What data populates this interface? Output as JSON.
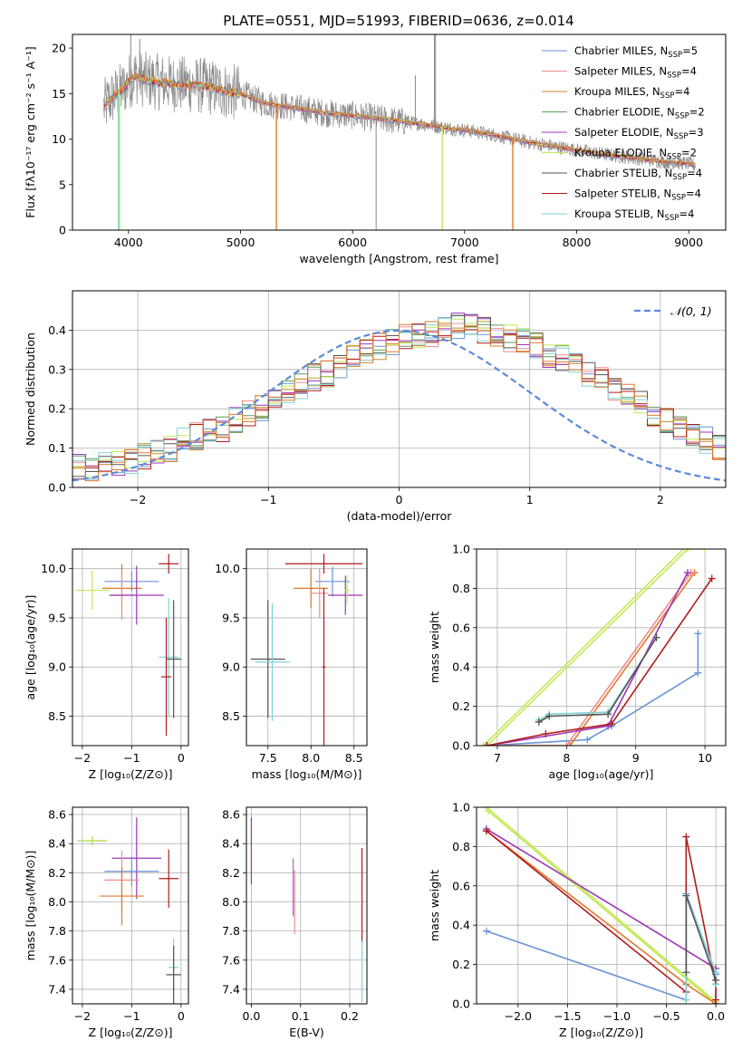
{
  "title": "PLATE=0551, MJD=51993, FIBERID=0636, z=0.014",
  "colors": {
    "chabrier_miles": "#6b93d6",
    "salpeter_miles": "#f08c8c",
    "kroupa_miles": "#c88a28",
    "chabrier_elodie": "#5e9e5e",
    "salpeter_elodie": "#9e34b8",
    "kroupa_elodie": "#c4e85a",
    "chabrier_stelib": "#555555",
    "salpeter_stelib": "#b01c1c",
    "kroupa_stelib": "#7fd3d6",
    "orange_model": "#e0792a",
    "data_gray": "#888888",
    "gaussian": "#5b8bd9",
    "grid": "#b0b0b0"
  },
  "legend_entries": [
    {
      "pre": "Chabrier MILES, N",
      "sub": "SSP",
      "post": "=5",
      "color": "#6b93d6"
    },
    {
      "pre": "Salpeter MILES, N",
      "sub": "SSP",
      "post": "=4",
      "color": "#f08c8c"
    },
    {
      "pre": "Kroupa MILES, N",
      "sub": "SSP",
      "post": "=4",
      "color": "#c88a28"
    },
    {
      "pre": "Chabrier ELODIE, N",
      "sub": "SSP",
      "post": "=2",
      "color": "#5e9e5e"
    },
    {
      "pre": "Salpeter ELODIE, N",
      "sub": "SSP",
      "post": "=3",
      "color": "#9e34b8"
    },
    {
      "pre": "Kroupa ELODIE, N",
      "sub": "SSP",
      "post": "=2",
      "color": "#c4e85a"
    },
    {
      "pre": "Chabrier STELIB, N",
      "sub": "SSP",
      "post": "=4",
      "color": "#555555"
    },
    {
      "pre": "Salpeter STELIB, N",
      "sub": "SSP",
      "post": "=4",
      "color": "#b01c1c"
    },
    {
      "pre": "Kroupa STELIB, N",
      "sub": "SSP",
      "post": "=4",
      "color": "#7fd3d6"
    }
  ],
  "chart_data": [
    {
      "id": "spectrum",
      "type": "line",
      "xlabel": "wavelength [Angstrom, rest frame]",
      "ylabel": "Flux [fλ10⁻¹⁷ erg cm⁻² s⁻¹ A⁻¹]",
      "xlim": [
        3500,
        9330
      ],
      "ylim": [
        0,
        21.5
      ],
      "xticks": [
        "4000",
        "5000",
        "6000",
        "7000",
        "8000",
        "9000"
      ],
      "xtick_values": [
        4000,
        5000,
        6000,
        7000,
        8000,
        9000
      ],
      "yticks": [
        "0",
        "5",
        "10",
        "15",
        "20"
      ],
      "ytick_values": [
        0,
        5,
        10,
        15,
        20
      ],
      "continuum": {
        "x": [
          3780,
          3850,
          3950,
          4050,
          4150,
          4300,
          4500,
          4700,
          4900,
          5000,
          5200,
          5400,
          5600,
          5800,
          6000,
          6200,
          6400,
          6600,
          6800,
          7000,
          7200,
          7400,
          7600,
          7800,
          8000,
          8200,
          8400,
          8600,
          8800,
          9000,
          9060
        ],
        "y": [
          13.5,
          14.5,
          15.5,
          17.0,
          16.5,
          16.2,
          16.0,
          15.8,
          15.2,
          15.0,
          14.0,
          13.6,
          13.2,
          12.8,
          12.6,
          12.3,
          12.0,
          11.7,
          11.3,
          11.0,
          10.6,
          10.1,
          9.6,
          9.2,
          8.8,
          8.4,
          8.1,
          7.8,
          7.5,
          7.3,
          7.1
        ]
      },
      "dropouts": [
        {
          "x": 3920,
          "y": 0.0,
          "color": "#c4e85a"
        },
        {
          "x": 3910,
          "y": 0.0,
          "color": "#7fd3d6"
        },
        {
          "x": 5320,
          "y": 0.0,
          "color": "#e0792a"
        },
        {
          "x": 6800,
          "y": 0.0,
          "color": "#c4e85a"
        },
        {
          "x": 7430,
          "y": 0.0,
          "color": "#e0792a"
        }
      ],
      "spikes": [
        {
          "x": 4020,
          "y": 21.5,
          "color": "#888888"
        },
        {
          "x": 4100,
          "y": 21.0,
          "color": "#888888"
        },
        {
          "x": 6210,
          "y": 0.0,
          "color": "#888888"
        },
        {
          "x": 6560,
          "y": 17.0,
          "color": "#888888"
        },
        {
          "x": 6730,
          "y": 21.5,
          "color": "#888888"
        },
        {
          "x": 6740,
          "y": 21.5,
          "color": "#888888"
        }
      ]
    },
    {
      "id": "residual-histogram",
      "type": "histogram",
      "xlabel": "(data-model)/error",
      "ylabel": "Normed distribution",
      "xlim": [
        -2.5,
        2.5
      ],
      "ylim": [
        0,
        0.5
      ],
      "xticks": [
        "−2",
        "−1",
        "0",
        "1",
        "2"
      ],
      "xtick_values": [
        -2,
        -1,
        0,
        1,
        2
      ],
      "yticks": [
        "0.0",
        "0.1",
        "0.2",
        "0.3",
        "0.4"
      ],
      "ytick_values": [
        0,
        0.1,
        0.2,
        0.3,
        0.4
      ],
      "gaussian_label": "𝒩(0, 1)",
      "bin_edges_start": -2.5,
      "bin_width": 0.1,
      "reference_heights": [
        0.05,
        0.05,
        0.06,
        0.06,
        0.07,
        0.08,
        0.09,
        0.1,
        0.12,
        0.13,
        0.14,
        0.15,
        0.17,
        0.19,
        0.2,
        0.22,
        0.24,
        0.26,
        0.28,
        0.29,
        0.31,
        0.33,
        0.35,
        0.36,
        0.37,
        0.38,
        0.39,
        0.39,
        0.4,
        0.41,
        0.42,
        0.4,
        0.39,
        0.38,
        0.37,
        0.36,
        0.34,
        0.33,
        0.31,
        0.29,
        0.27,
        0.25,
        0.23,
        0.21,
        0.19,
        0.17,
        0.15,
        0.13,
        0.12,
        0.1
      ],
      "series_order": [
        "chabrier_miles",
        "salpeter_miles",
        "kroupa_miles",
        "chabrier_elodie",
        "salpeter_elodie",
        "kroupa_elodie",
        "chabrier_stelib",
        "salpeter_stelib",
        "kroupa_stelib",
        "orange_model"
      ]
    },
    {
      "id": "age-vs-Z",
      "type": "errorbar",
      "xlabel": "Z [log₁₀(Z/Z⊙)]",
      "ylabel": "age  [log₁₀(age/yr)]",
      "xlim": [
        -2.2,
        0.15
      ],
      "ylim": [
        8.2,
        10.2
      ],
      "xticks": [
        "−2",
        "−1",
        "0"
      ],
      "xtick_values": [
        -2,
        -1,
        0
      ],
      "yticks": [
        "8.5",
        "9.0",
        "9.5",
        "10.0"
      ],
      "ytick_values": [
        8.5,
        9.0,
        9.5,
        10.0
      ],
      "points": [
        {
          "x": -1.0,
          "y": 9.87,
          "xerr": 0.55,
          "yerr": 0.1,
          "color": "#6b93d6"
        },
        {
          "x": -1.2,
          "y": 9.8,
          "xerr": 0.4,
          "yerr": 0.25,
          "color": "#e0792a"
        },
        {
          "x": -1.2,
          "y": 9.73,
          "xerr": 0.25,
          "yerr": 0.25,
          "color": "#f08c8c"
        },
        {
          "x": -0.9,
          "y": 9.73,
          "xerr": 0.55,
          "yerr": 0.3,
          "color": "#9e34b8"
        },
        {
          "x": -1.8,
          "y": 9.78,
          "xerr": 0.35,
          "yerr": 0.2,
          "color": "#c4e85a"
        },
        {
          "x": -0.25,
          "y": 10.05,
          "xerr": 0.2,
          "yerr": 0.1,
          "color": "#b01c1c"
        },
        {
          "x": -0.25,
          "y": 9.1,
          "xerr": 0.2,
          "yerr": 0.6,
          "color": "#7fd3d6"
        },
        {
          "x": -0.15,
          "y": 9.08,
          "xerr": 0.15,
          "yerr": 0.6,
          "color": "#555555"
        },
        {
          "x": -0.3,
          "y": 8.9,
          "xerr": 0.1,
          "yerr": 0.6,
          "color": "#b01c1c"
        }
      ]
    },
    {
      "id": "age-vs-mass",
      "type": "errorbar",
      "xlabel": "mass [log₁₀(M/M⊙)]",
      "xlim": [
        7.25,
        8.65
      ],
      "ylim": [
        8.2,
        10.2
      ],
      "xticks": [
        "7.5",
        "8.0",
        "8.5"
      ],
      "xtick_values": [
        7.5,
        8.0,
        8.5
      ],
      "yticks": [
        "8.5",
        "9.0",
        "9.5",
        "10.0"
      ],
      "ytick_values": [
        8.5,
        9.0,
        9.5,
        10.0
      ],
      "points": [
        {
          "x": 8.15,
          "y": 10.05,
          "xerr": 0.45,
          "yerr": 0.1,
          "color": "#b01c1c"
        },
        {
          "x": 8.25,
          "y": 9.87,
          "xerr": 0.2,
          "yerr": 0.15,
          "color": "#6b93d6"
        },
        {
          "x": 8.0,
          "y": 9.8,
          "xerr": 0.2,
          "yerr": 0.2,
          "color": "#e0792a"
        },
        {
          "x": 8.1,
          "y": 9.75,
          "xerr": 0.1,
          "yerr": 0.25,
          "color": "#f08c8c"
        },
        {
          "x": 8.4,
          "y": 9.73,
          "xerr": 0.2,
          "yerr": 0.2,
          "color": "#9e34b8"
        },
        {
          "x": 8.42,
          "y": 9.78,
          "xerr": 0.03,
          "yerr": 0.15,
          "color": "#c4e85a"
        },
        {
          "x": 7.5,
          "y": 9.08,
          "xerr": 0.2,
          "yerr": 0.6,
          "color": "#555555"
        },
        {
          "x": 7.55,
          "y": 9.05,
          "xerr": 0.2,
          "yerr": 0.6,
          "color": "#7fd3d6"
        },
        {
          "x": 8.15,
          "y": 9.0,
          "xerr": 0.02,
          "yerr": 0.8,
          "color": "#b01c1c"
        }
      ]
    },
    {
      "id": "massweight-vs-age",
      "type": "line",
      "xlabel": "age  [log₁₀(age/yr)]",
      "ylabel": "mass weight",
      "xlim": [
        6.7,
        10.3
      ],
      "ylim": [
        0,
        1.0
      ],
      "xticks": [
        "7",
        "8",
        "9",
        "10"
      ],
      "xtick_values": [
        7,
        8,
        9,
        10
      ],
      "yticks": [
        "0.0",
        "0.2",
        "0.4",
        "0.6",
        "0.8",
        "1.0"
      ],
      "ytick_values": [
        0,
        0.2,
        0.4,
        0.6,
        0.8,
        1.0
      ],
      "series": [
        {
          "color": "#c4e85a",
          "x": [
            6.85,
            9.75,
            10.0
          ],
          "y": [
            0.0,
            1.0,
            1.0
          ]
        },
        {
          "color": "#c4e85a",
          "x": [
            6.8,
            9.75
          ],
          "y": [
            0.0,
            1.02
          ]
        },
        {
          "color": "#6b93d6",
          "x": [
            6.85,
            8.3,
            8.65,
            9.9,
            9.9
          ],
          "y": [
            0.0,
            0.03,
            0.1,
            0.37,
            0.57
          ]
        },
        {
          "color": "#e0792a",
          "x": [
            6.85,
            8.05,
            9.85
          ],
          "y": [
            0.0,
            0.0,
            0.88
          ]
        },
        {
          "color": "#f08c8c",
          "x": [
            6.85,
            8.0,
            9.8
          ],
          "y": [
            0.0,
            0.0,
            0.88
          ]
        },
        {
          "color": "#9e34b8",
          "x": [
            6.85,
            8.6,
            9.75
          ],
          "y": [
            0.0,
            0.1,
            0.88
          ]
        },
        {
          "color": "#b01c1c",
          "x": [
            6.85,
            7.7,
            8.65,
            10.1
          ],
          "y": [
            0.0,
            0.06,
            0.11,
            0.85
          ]
        },
        {
          "color": "#7fd3d6",
          "x": [
            7.6,
            7.75,
            8.6,
            9.3
          ],
          "y": [
            0.13,
            0.16,
            0.17,
            0.55
          ]
        },
        {
          "color": "#555555",
          "x": [
            7.6,
            7.75,
            8.6,
            9.3
          ],
          "y": [
            0.12,
            0.15,
            0.16,
            0.55
          ]
        }
      ]
    },
    {
      "id": "mass-vs-Z",
      "type": "errorbar",
      "xlabel": "Z [log₁₀(Z/Z⊙)]",
      "ylabel": "mass [log₁₀(M/M⊙)]",
      "xlim": [
        -2.2,
        0.15
      ],
      "ylim": [
        7.3,
        8.65
      ],
      "xticks": [
        "−2",
        "−1",
        "0"
      ],
      "xtick_values": [
        -2,
        -1,
        0
      ],
      "yticks": [
        "7.4",
        "7.6",
        "7.8",
        "8.0",
        "8.2",
        "8.4",
        "8.6"
      ],
      "ytick_values": [
        7.4,
        7.6,
        7.8,
        8.0,
        8.2,
        8.4,
        8.6
      ],
      "points": [
        {
          "x": -1.8,
          "y": 8.42,
          "xerr": 0.3,
          "yerr": 0.03,
          "color": "#5e9e5e"
        },
        {
          "x": -1.8,
          "y": 8.42,
          "xerr": 0.3,
          "yerr": 0.03,
          "color": "#c4e85a"
        },
        {
          "x": -0.9,
          "y": 8.3,
          "xerr": 0.5,
          "yerr": 0.28,
          "color": "#9e34b8"
        },
        {
          "x": -1.0,
          "y": 8.21,
          "xerr": 0.55,
          "yerr": 0.1,
          "color": "#6b93d6"
        },
        {
          "x": -1.2,
          "y": 8.15,
          "xerr": 0.35,
          "yerr": 0.2,
          "color": "#f08c8c"
        },
        {
          "x": -0.25,
          "y": 8.16,
          "xerr": 0.2,
          "yerr": 0.2,
          "color": "#b01c1c"
        },
        {
          "x": -1.2,
          "y": 8.04,
          "xerr": 0.45,
          "yerr": 0.2,
          "color": "#e0792a"
        },
        {
          "x": -0.15,
          "y": 7.55,
          "xerr": 0.1,
          "yerr": 0.2,
          "color": "#7fd3d6"
        },
        {
          "x": -0.15,
          "y": 7.5,
          "xerr": 0.15,
          "yerr": 0.2,
          "color": "#555555"
        }
      ]
    },
    {
      "id": "mass-vs-EBV",
      "type": "errorbar",
      "xlabel": "E(B-V)",
      "xlim": [
        -0.01,
        0.235
      ],
      "ylim": [
        7.3,
        8.65
      ],
      "xticks": [
        "0.0",
        "0.1",
        "0.2"
      ],
      "xtick_values": [
        0.0,
        0.1,
        0.2
      ],
      "yticks": [
        "7.4",
        "7.6",
        "7.8",
        "8.0",
        "8.2",
        "8.4",
        "8.6"
      ],
      "ytick_values": [
        7.4,
        7.6,
        7.8,
        8.0,
        8.2,
        8.4,
        8.6
      ],
      "points": [
        {
          "x": 0.0,
          "y": 8.42,
          "xerr": 0.0,
          "yerr": 0.03,
          "color": "#c4e85a"
        },
        {
          "x": 0.0,
          "y": 8.35,
          "xerr": 0.0,
          "yerr": 0.23,
          "color": "#9e34b8"
        },
        {
          "x": 0.085,
          "y": 8.1,
          "xerr": 0.0,
          "yerr": 0.2,
          "color": "#9e6bd0"
        },
        {
          "x": 0.088,
          "y": 8.0,
          "xerr": 0.0,
          "yerr": 0.22,
          "color": "#f08c8c"
        },
        {
          "x": 0.225,
          "y": 8.05,
          "xerr": 0.0,
          "yerr": 0.32,
          "color": "#b01c1c"
        },
        {
          "x": 0.225,
          "y": 7.52,
          "xerr": 0.0,
          "yerr": 0.21,
          "color": "#7fd3d6"
        }
      ]
    },
    {
      "id": "massweight-vs-Z",
      "type": "line",
      "xlabel": "Z [log₁₀(Z/Z⊙)]",
      "ylabel": "mass weight",
      "xlim": [
        -2.42,
        0.1
      ],
      "ylim": [
        0,
        1.0
      ],
      "xticks": [
        "−2.0",
        "−1.5",
        "−1.0",
        "−0.5",
        "0.0"
      ],
      "xtick_values": [
        -2.0,
        -1.5,
        -1.0,
        -0.5,
        0.0
      ],
      "yticks": [
        "0.0",
        "0.2",
        "0.4",
        "0.6",
        "0.8",
        "1.0"
      ],
      "ytick_values": [
        0,
        0.2,
        0.4,
        0.6,
        0.8,
        1.0
      ],
      "series": [
        {
          "color": "#c4e85a",
          "x": [
            -2.32,
            0.0,
            0.0
          ],
          "y": [
            1.0,
            0.01,
            0.0
          ]
        },
        {
          "color": "#c4e85a",
          "x": [
            -2.3,
            0.0
          ],
          "y": [
            0.98,
            0.0
          ]
        },
        {
          "color": "#6b93d6",
          "x": [
            -2.32,
            -0.3,
            -0.3,
            0.0
          ],
          "y": [
            0.37,
            0.02,
            0.56,
            0.15
          ]
        },
        {
          "color": "#e0792a",
          "x": [
            -2.32,
            -0.3,
            0.0
          ],
          "y": [
            0.88,
            0.1,
            0.0
          ]
        },
        {
          "color": "#9e34b8",
          "x": [
            -2.32,
            0.0,
            0.0
          ],
          "y": [
            0.89,
            0.18,
            0.0
          ]
        },
        {
          "color": "#b01c1c",
          "x": [
            -2.32,
            -0.3,
            -0.3,
            0.0,
            0.0
          ],
          "y": [
            0.88,
            0.06,
            0.85,
            0.1,
            0.02
          ]
        },
        {
          "color": "#7fd3d6",
          "x": [
            -0.3,
            -0.3,
            0.0,
            0.0
          ],
          "y": [
            0.02,
            0.55,
            0.16,
            0.1
          ]
        },
        {
          "color": "#555555",
          "x": [
            -0.3,
            -0.3,
            0.0
          ],
          "y": [
            0.16,
            0.55,
            0.12
          ]
        }
      ]
    }
  ]
}
